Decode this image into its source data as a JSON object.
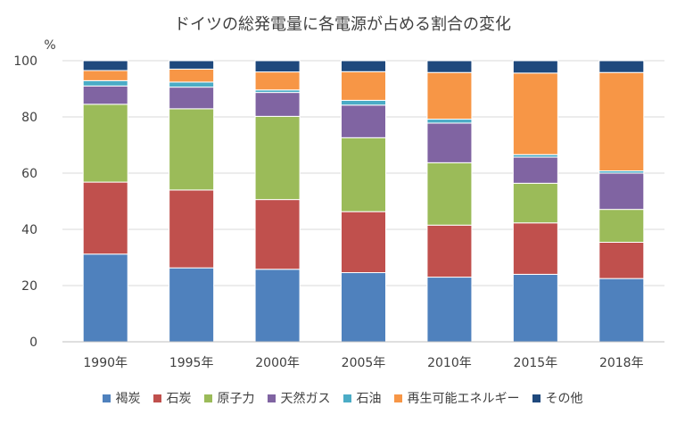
{
  "chart_data": {
    "type": "bar",
    "stacked": true,
    "title": "ドイツの総発電量に各電源が占める割合の変化",
    "ylabel": "%",
    "ylim": [
      0,
      100
    ],
    "yticks": [
      0,
      20,
      40,
      60,
      80,
      100
    ],
    "grid": true,
    "legend_position": "bottom",
    "categories": [
      "1990年",
      "1995年",
      "2000年",
      "2005年",
      "2010年",
      "2015年",
      "2018年"
    ],
    "series": [
      {
        "name": "褐炭",
        "color": "#4f81bd",
        "values": [
          31.2,
          26.3,
          25.8,
          24.6,
          23.0,
          24.0,
          22.5
        ]
      },
      {
        "name": "石炭",
        "color": "#c0504d",
        "values": [
          25.6,
          27.7,
          24.8,
          21.7,
          18.5,
          18.3,
          12.9
        ]
      },
      {
        "name": "原子力",
        "color": "#9bbb59",
        "values": [
          27.7,
          28.9,
          29.6,
          26.3,
          22.2,
          14.1,
          11.7
        ]
      },
      {
        "name": "天然ガス",
        "color": "#8064a2",
        "values": [
          6.5,
          7.7,
          8.5,
          11.6,
          14.1,
          9.3,
          12.9
        ]
      },
      {
        "name": "石油",
        "color": "#4bacc6",
        "values": [
          1.9,
          1.8,
          0.9,
          1.7,
          1.4,
          0.9,
          0.8
        ]
      },
      {
        "name": "再生可能エネルギー",
        "color": "#f79646",
        "values": [
          3.6,
          4.6,
          6.4,
          10.2,
          16.6,
          29.0,
          35.0
        ]
      },
      {
        "name": "その他",
        "color": "#1f497d",
        "values": [
          3.5,
          3.0,
          4.0,
          3.9,
          4.2,
          4.4,
          4.2
        ]
      }
    ]
  }
}
